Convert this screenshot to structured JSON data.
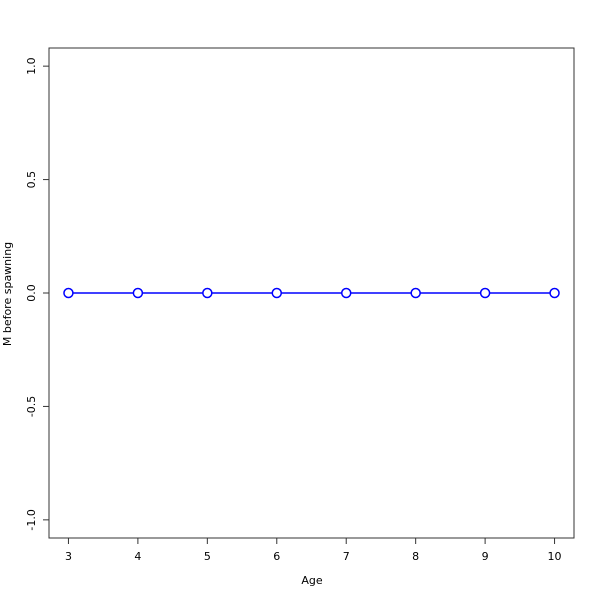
{
  "chart_data": {
    "type": "line",
    "title": "",
    "xlabel": "Age",
    "ylabel": "M before spawning",
    "x": [
      3,
      4,
      5,
      6,
      7,
      8,
      9,
      10
    ],
    "series": [
      {
        "values": [
          0,
          0,
          0,
          0,
          0,
          0,
          0,
          0
        ],
        "color": "#0000ff",
        "marker": "open-circle"
      }
    ],
    "xticks": [
      3,
      4,
      5,
      6,
      7,
      8,
      9,
      10
    ],
    "xtick_labels": [
      "3",
      "4",
      "5",
      "6",
      "7",
      "8",
      "9",
      "10"
    ],
    "yticks": [
      -1.0,
      -0.5,
      0.0,
      0.5,
      1.0
    ],
    "ytick_labels": [
      "-1.0",
      "-0.5",
      "0.0",
      "0.5",
      "1.0"
    ],
    "xlim": [
      2.72,
      10.28
    ],
    "ylim": [
      -1.08,
      1.08
    ],
    "grid": false
  }
}
